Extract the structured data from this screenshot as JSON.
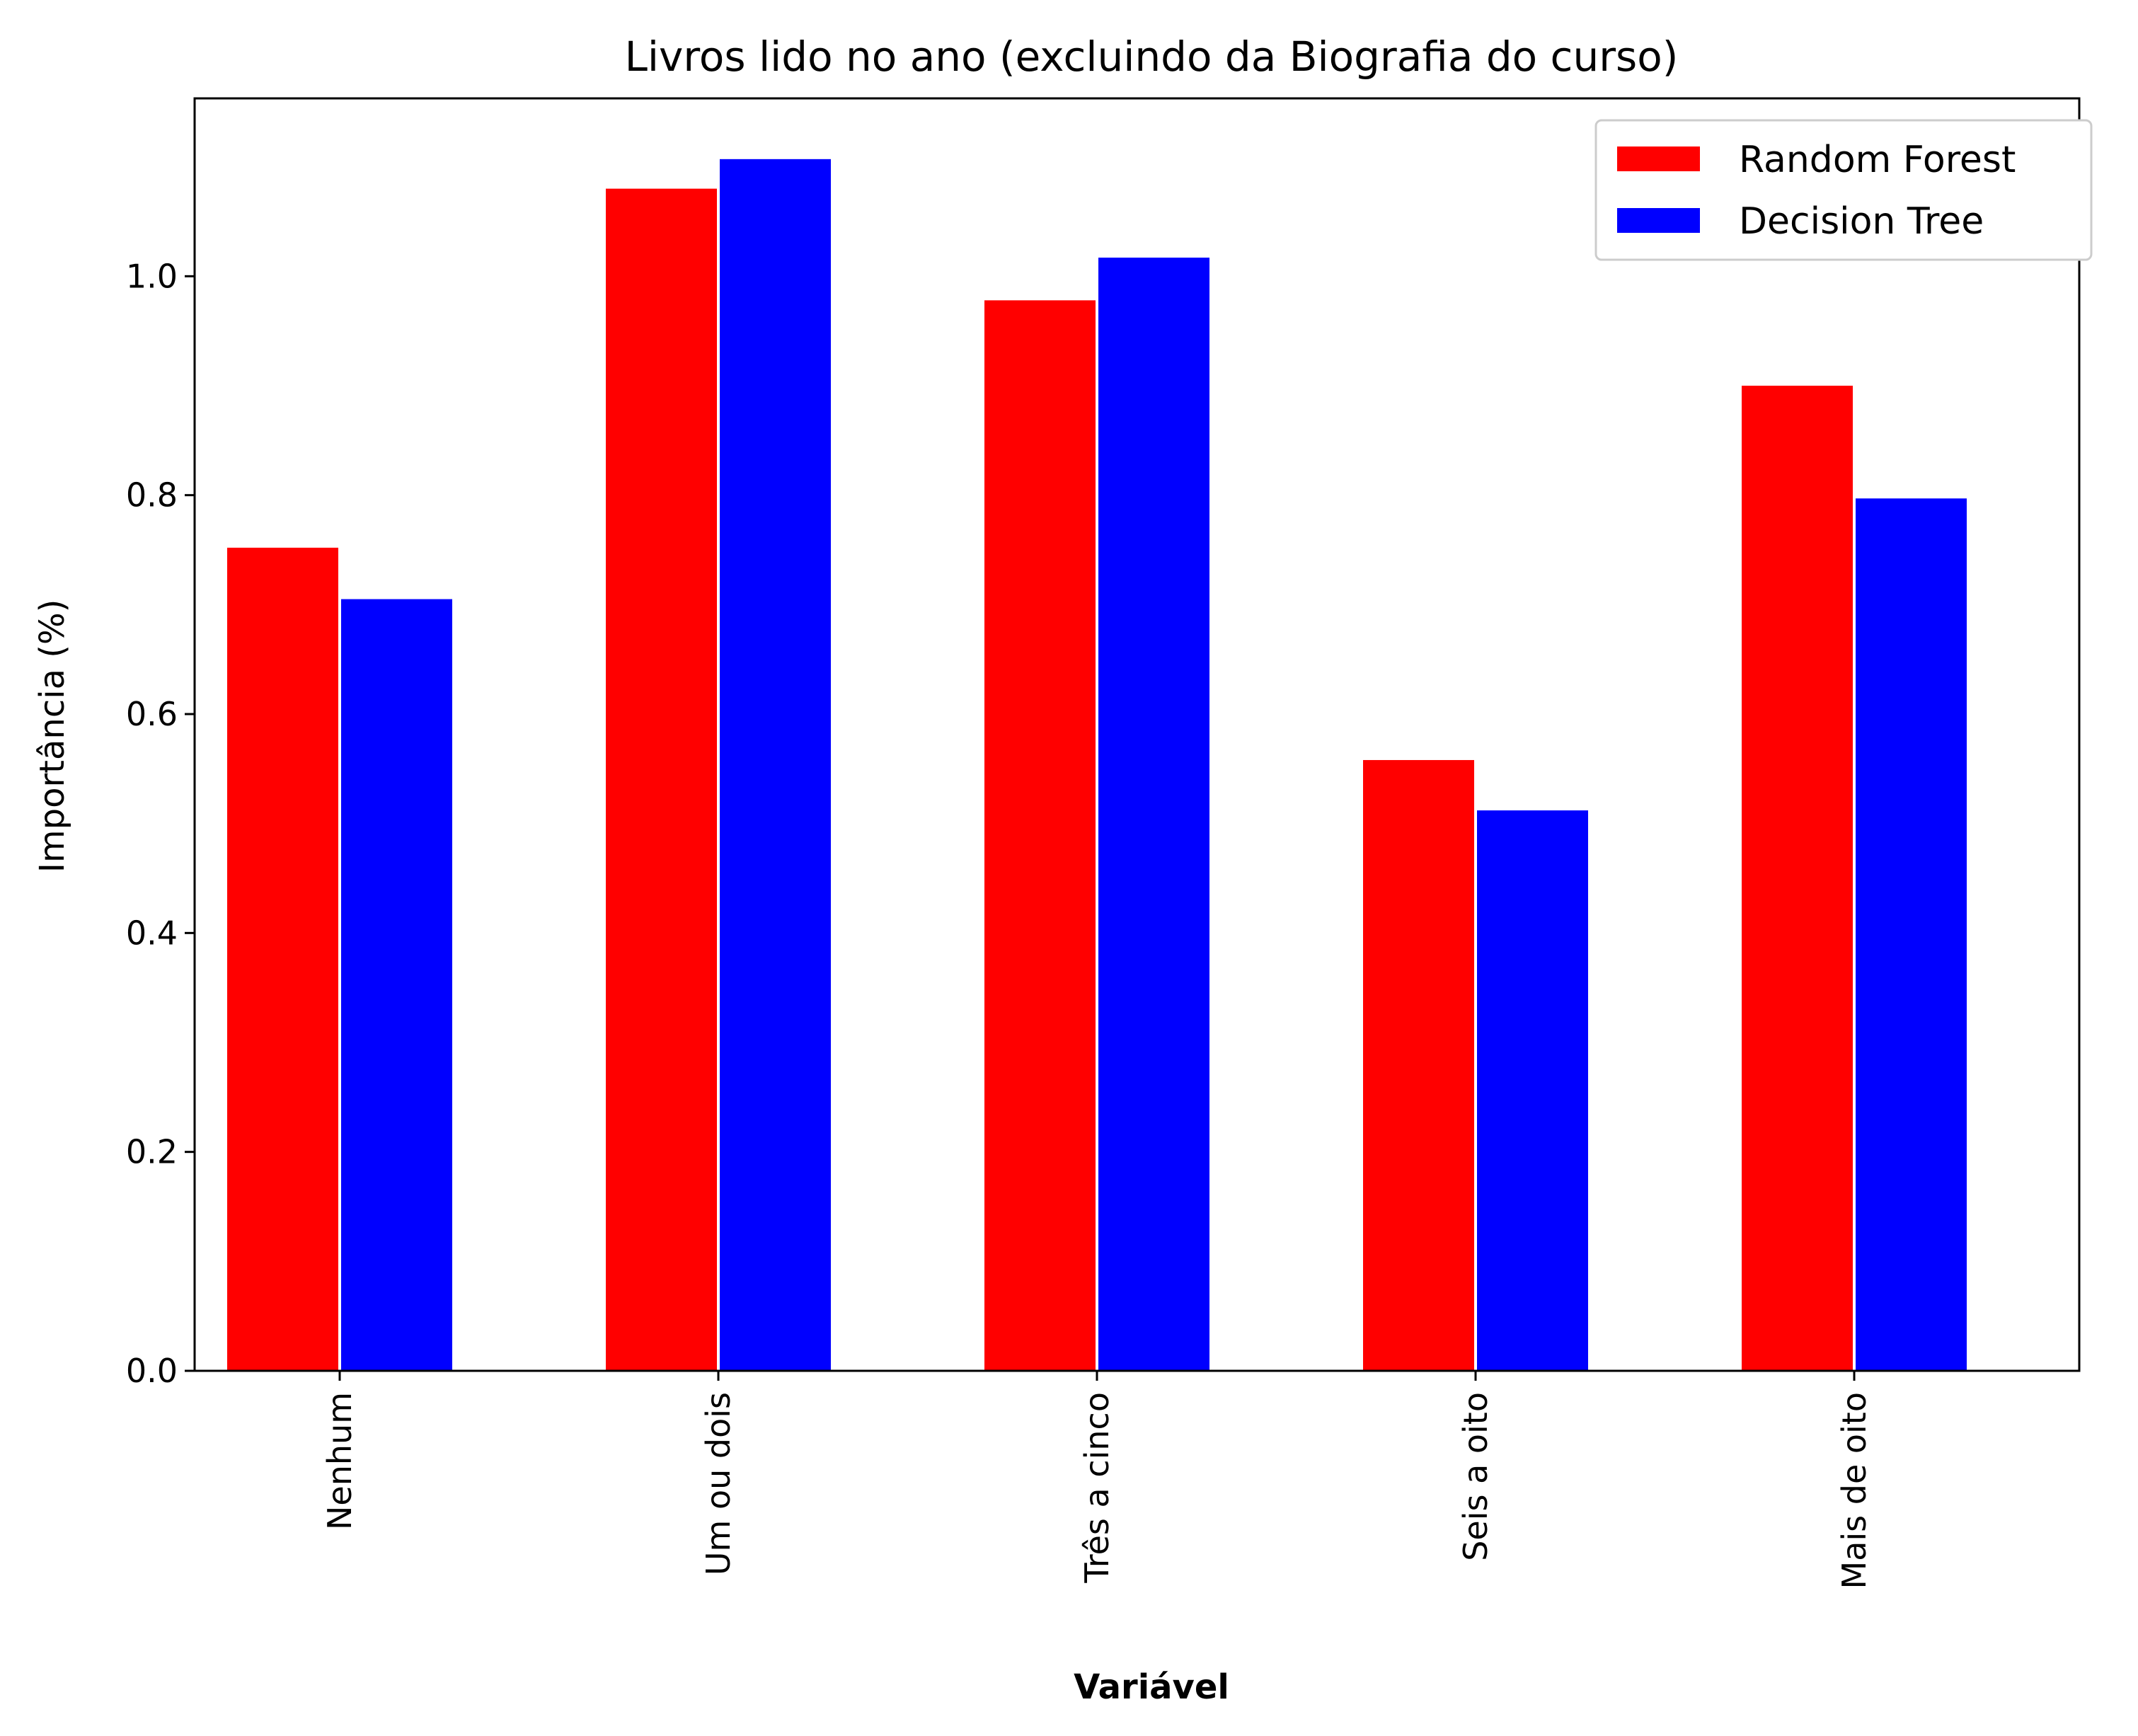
{
  "chart_data": {
    "type": "bar",
    "title": "Livros lido no ano (excluindo da Biografia do curso)",
    "xlabel": "Variável",
    "ylabel": "Importância (%)",
    "categories": [
      "Nenhum",
      "Um ou dois",
      "Três a cinco",
      "Seis a oito",
      "Mais de oito"
    ],
    "series": [
      {
        "name": "Random Forest",
        "color": "#ff0000",
        "values": [
          0.752,
          1.08,
          0.978,
          0.558,
          0.9
        ]
      },
      {
        "name": "Decision Tree",
        "color": "#0000ff",
        "values": [
          0.705,
          1.107,
          1.017,
          0.512,
          0.797
        ]
      }
    ],
    "ylim": [
      0,
      1.1625
    ],
    "yticks": [
      "0.0",
      "0.2",
      "0.4",
      "0.6",
      "0.8",
      "1.0"
    ],
    "ytick_values": [
      0,
      0.2,
      0.4,
      0.6,
      0.8,
      1.0
    ],
    "grid": false,
    "legend_position": "top-right"
  }
}
